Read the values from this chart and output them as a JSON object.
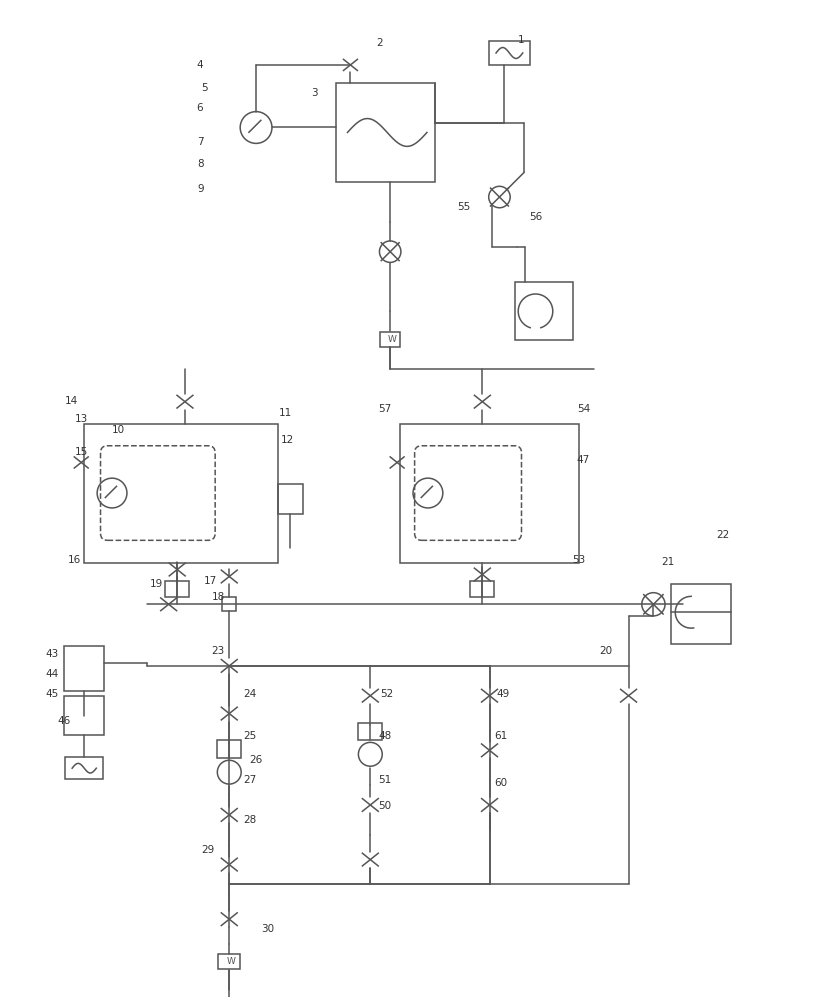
{
  "bg_color": "#ffffff",
  "lc": "#555555",
  "lc2": "#888888",
  "label_color": "#333333",
  "fig_width": 8.34,
  "fig_height": 10.0,
  "dpi": 100
}
